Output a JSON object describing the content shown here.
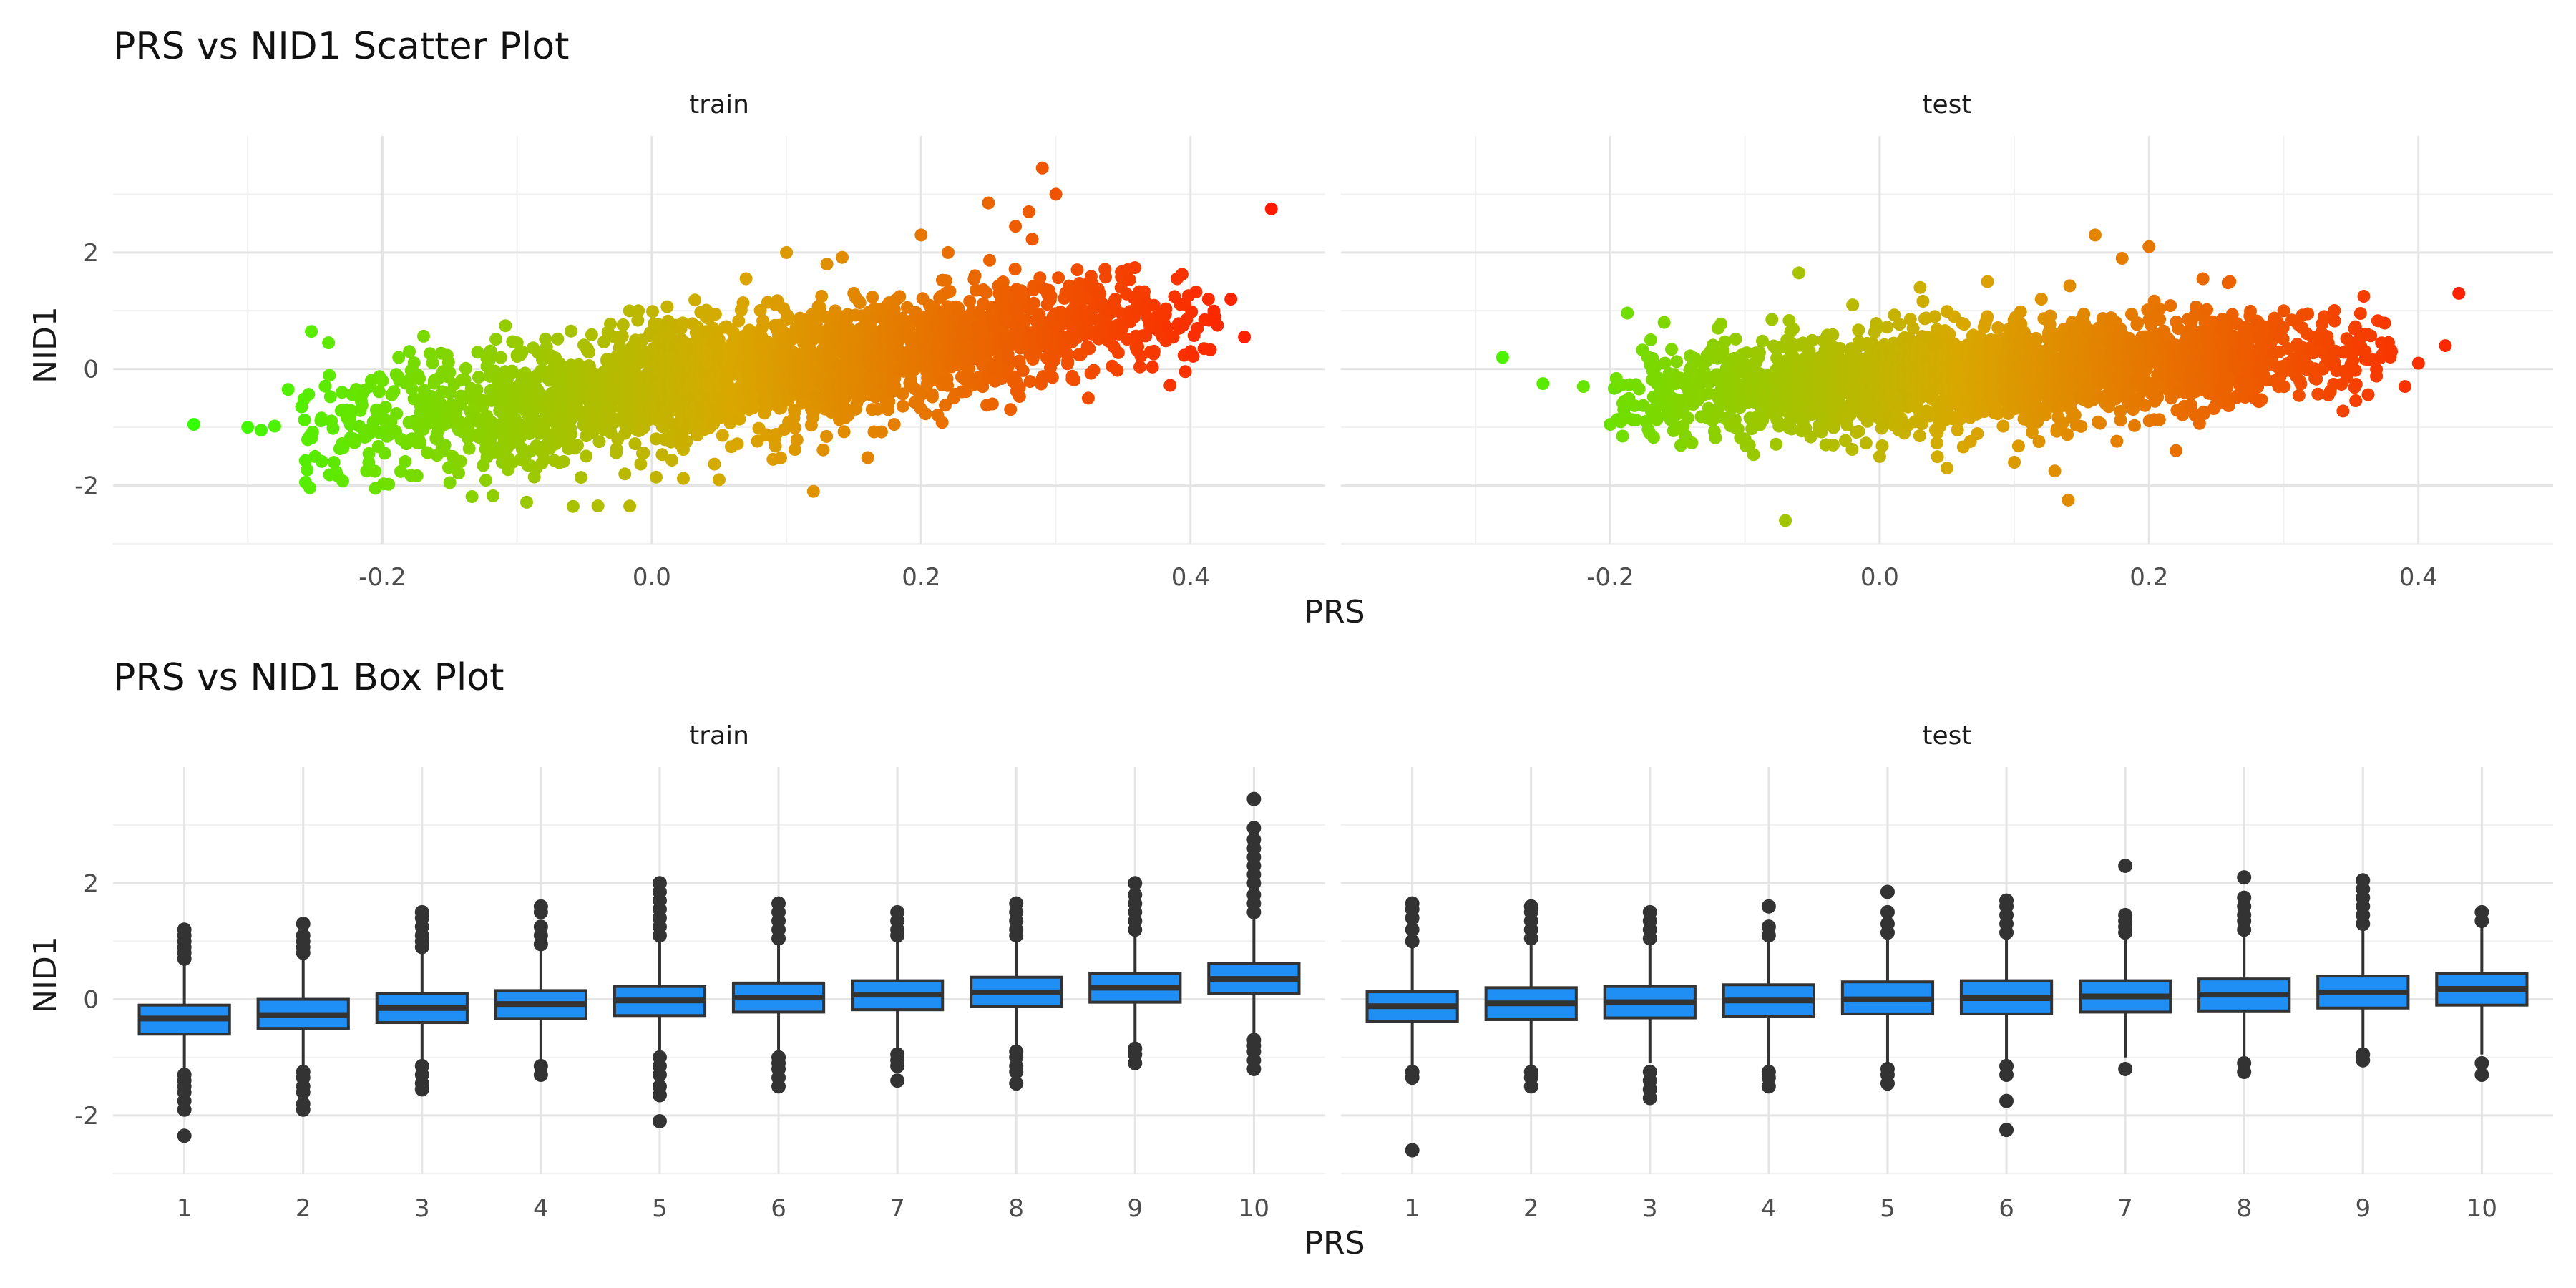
{
  "figure": {
    "scatter_title": "PRS vs NID1 Scatter Plot",
    "box_title": "PRS vs NID1 Box Plot"
  },
  "chart_data": [
    {
      "type": "scatter",
      "title": "PRS vs NID1 Scatter Plot",
      "xlabel": "PRS",
      "ylabel": "NID1",
      "grid": true,
      "legend": "none",
      "color_scale": {
        "low": "#33ff00",
        "mid": "#d9a800",
        "high": "#ff1a00",
        "mapped_to": "PRS"
      },
      "panels": [
        {
          "name": "train",
          "xlim": [
            -0.4,
            0.5
          ],
          "ylim": [
            -3,
            4
          ],
          "x_ticks": [
            -0.2,
            0.0,
            0.2,
            0.4
          ],
          "x_tick_labels": [
            "-0.2",
            "0.0",
            "0.2",
            "0.4"
          ],
          "y_ticks": [
            -2,
            0,
            2
          ],
          "y_tick_labels": [
            "-2",
            "0",
            "2"
          ],
          "points_x": [
            -0.34,
            -0.3,
            -0.29,
            -0.28,
            -0.27,
            -0.26,
            -0.25,
            -0.24,
            -0.23,
            -0.21,
            -0.2,
            -0.18,
            -0.15,
            -0.12,
            -0.1,
            -0.08,
            -0.06,
            -0.04,
            -0.02,
            -0.01,
            0.02,
            0.04,
            0.05,
            0.07,
            0.09,
            0.1,
            0.12,
            0.13,
            0.15,
            0.18,
            0.2,
            0.22,
            0.24,
            0.25,
            0.27,
            0.28,
            0.29,
            0.3,
            0.32,
            0.34,
            0.36,
            0.37,
            0.38,
            0.39,
            0.4,
            0.41,
            0.42,
            0.43,
            0.44,
            0.46
          ],
          "points_y": [
            -0.95,
            -1.0,
            -1.05,
            -0.98,
            -0.35,
            -0.65,
            -1.5,
            0.45,
            -0.4,
            -1.45,
            -0.2,
            0.3,
            -1.95,
            -0.9,
            0.45,
            -1.55,
            0.65,
            -2.35,
            -1.8,
            1.0,
            -1.2,
            0.9,
            -1.9,
            1.55,
            -1.55,
            2.0,
            -2.1,
            1.8,
            1.3,
            -0.95,
            2.3,
            2.0,
            1.6,
            2.85,
            2.45,
            2.7,
            3.45,
            3.0,
            1.2,
            0.95,
            1.25,
            0.7,
            0.8,
            1.55,
            0.3,
            0.35,
            0.75,
            1.2,
            0.55,
            2.75
          ],
          "cloud_center": {
            "x_range": [
              -0.22,
              0.38
            ],
            "slope": 3.2,
            "intercept": -0.15,
            "sd": 0.55
          }
        },
        {
          "name": "test",
          "xlim": [
            -0.4,
            0.5
          ],
          "ylim": [
            -3,
            4
          ],
          "x_ticks": [
            -0.2,
            0.0,
            0.2,
            0.4
          ],
          "x_tick_labels": [
            "-0.2",
            "0.0",
            "0.2",
            "0.4"
          ],
          "y_ticks": [
            -2,
            0,
            2
          ],
          "y_tick_labels": [
            "-2",
            "0",
            "2"
          ],
          "points_x": [
            -0.28,
            -0.25,
            -0.22,
            -0.2,
            -0.19,
            -0.17,
            -0.16,
            -0.14,
            -0.12,
            -0.1,
            -0.08,
            -0.07,
            -0.06,
            -0.04,
            -0.02,
            0.0,
            0.03,
            0.05,
            0.08,
            0.1,
            0.12,
            0.13,
            0.14,
            0.16,
            0.18,
            0.2,
            0.22,
            0.24,
            0.26,
            0.3,
            0.33,
            0.36,
            0.38,
            0.39,
            0.4,
            0.42,
            0.43
          ],
          "points_y": [
            0.2,
            -0.25,
            -0.3,
            -0.95,
            -0.7,
            0.5,
            0.8,
            -0.55,
            0.7,
            -1.2,
            0.85,
            -2.6,
            1.65,
            -1.3,
            1.1,
            -1.5,
            1.4,
            -1.7,
            1.5,
            -1.6,
            1.2,
            -1.75,
            -2.25,
            2.3,
            1.9,
            2.1,
            -1.4,
            1.55,
            1.5,
            1.0,
            0.9,
            0.6,
            0.3,
            -0.3,
            0.1,
            0.4,
            1.3
          ],
          "cloud_center": {
            "x_range": [
              -0.16,
              0.34
            ],
            "slope": 1.4,
            "intercept": -0.15,
            "sd": 0.45
          }
        }
      ]
    },
    {
      "type": "box",
      "title": "PRS vs NID1 Box Plot",
      "xlabel": "PRS",
      "ylabel": "NID1",
      "grid": true,
      "legend": "none",
      "box_fill": "#1f8ff5",
      "box_line": "#333333",
      "panels": [
        {
          "name": "train",
          "ylim": [
            -3,
            4
          ],
          "y_ticks": [
            -2,
            0,
            2
          ],
          "y_tick_labels": [
            "-2",
            "0",
            "2"
          ],
          "categories": [
            "1",
            "2",
            "3",
            "4",
            "5",
            "6",
            "7",
            "8",
            "9",
            "10"
          ],
          "boxes": [
            {
              "q1": -0.6,
              "median": -0.33,
              "q3": -0.1,
              "lower": -1.25,
              "upper": 0.6,
              "outliers": [
                0.7,
                0.8,
                0.9,
                1.0,
                1.1,
                1.2,
                -1.3,
                -1.4,
                -1.5,
                -1.6,
                -1.75,
                -1.9,
                -2.35
              ]
            },
            {
              "q1": -0.5,
              "median": -0.27,
              "q3": 0.0,
              "lower": -1.2,
              "upper": 0.75,
              "outliers": [
                0.8,
                0.9,
                1.0,
                1.1,
                1.3,
                -1.25,
                -1.35,
                -1.5,
                -1.6,
                -1.8,
                -1.9
              ]
            },
            {
              "q1": -0.4,
              "median": -0.15,
              "q3": 0.1,
              "lower": -1.1,
              "upper": 0.85,
              "outliers": [
                0.9,
                1.0,
                1.1,
                1.25,
                1.4,
                1.5,
                -1.15,
                -1.3,
                -1.45,
                -1.55
              ]
            },
            {
              "q1": -0.33,
              "median": -0.08,
              "q3": 0.15,
              "lower": -1.1,
              "upper": 0.9,
              "outliers": [
                0.95,
                1.1,
                1.25,
                1.5,
                1.6,
                -1.15,
                -1.3
              ]
            },
            {
              "q1": -0.28,
              "median": -0.02,
              "q3": 0.22,
              "lower": -0.95,
              "upper": 1.0,
              "outliers": [
                1.1,
                1.25,
                1.4,
                1.55,
                1.7,
                1.85,
                2.0,
                -1.0,
                -1.15,
                -1.3,
                -1.5,
                -1.65,
                -2.1
              ]
            },
            {
              "q1": -0.22,
              "median": 0.03,
              "q3": 0.28,
              "lower": -0.95,
              "upper": 0.95,
              "outliers": [
                1.05,
                1.2,
                1.35,
                1.5,
                1.65,
                -1.0,
                -1.1,
                -1.2,
                -1.35,
                -1.5
              ]
            },
            {
              "q1": -0.18,
              "median": 0.08,
              "q3": 0.32,
              "lower": -0.9,
              "upper": 1.0,
              "outliers": [
                1.1,
                1.2,
                1.35,
                1.5,
                -0.95,
                -1.05,
                -1.15,
                -1.4
              ]
            },
            {
              "q1": -0.12,
              "median": 0.12,
              "q3": 0.38,
              "lower": -0.85,
              "upper": 1.05,
              "outliers": [
                1.1,
                1.2,
                1.35,
                1.5,
                1.65,
                -0.9,
                -1.0,
                -1.15,
                -1.25,
                -1.45
              ]
            },
            {
              "q1": -0.05,
              "median": 0.2,
              "q3": 0.45,
              "lower": -0.75,
              "upper": 1.15,
              "outliers": [
                1.2,
                1.35,
                1.5,
                1.65,
                1.8,
                2.0,
                -0.85,
                -0.95,
                -1.1
              ]
            },
            {
              "q1": 0.1,
              "median": 0.35,
              "q3": 0.62,
              "lower": -0.6,
              "upper": 1.4,
              "outliers": [
                1.5,
                1.65,
                1.8,
                2.0,
                2.15,
                2.3,
                2.45,
                2.6,
                2.75,
                2.95,
                3.45,
                -0.7,
                -0.8,
                -0.9,
                -1.05,
                -1.2
              ]
            }
          ]
        },
        {
          "name": "test",
          "ylim": [
            -3,
            4
          ],
          "y_ticks": [
            -2,
            0,
            2
          ],
          "y_tick_labels": [
            "-2",
            "0",
            "2"
          ],
          "categories": [
            "1",
            "2",
            "3",
            "4",
            "5",
            "6",
            "7",
            "8",
            "9",
            "10"
          ],
          "boxes": [
            {
              "q1": -0.38,
              "median": -0.12,
              "q3": 0.13,
              "lower": -1.2,
              "upper": 0.9,
              "outliers": [
                1.0,
                1.2,
                1.4,
                1.55,
                1.65,
                -1.25,
                -1.35,
                -2.6
              ]
            },
            {
              "q1": -0.35,
              "median": -0.07,
              "q3": 0.2,
              "lower": -1.15,
              "upper": 0.95,
              "outliers": [
                1.05,
                1.2,
                1.35,
                1.5,
                1.6,
                -1.25,
                -1.35,
                -1.5
              ]
            },
            {
              "q1": -0.32,
              "median": -0.05,
              "q3": 0.22,
              "lower": -1.1,
              "upper": 0.95,
              "outliers": [
                1.05,
                1.2,
                1.35,
                1.5,
                -1.25,
                -1.4,
                -1.55,
                -1.7
              ]
            },
            {
              "q1": -0.3,
              "median": -0.02,
              "q3": 0.25,
              "lower": -1.15,
              "upper": 1.0,
              "outliers": [
                1.1,
                1.25,
                1.6,
                -1.25,
                -1.35,
                -1.5
              ]
            },
            {
              "q1": -0.25,
              "median": 0.0,
              "q3": 0.3,
              "lower": -1.1,
              "upper": 1.05,
              "outliers": [
                1.15,
                1.3,
                1.5,
                1.85,
                -1.2,
                -1.3,
                -1.45
              ]
            },
            {
              "q1": -0.25,
              "median": 0.02,
              "q3": 0.32,
              "lower": -1.05,
              "upper": 1.05,
              "outliers": [
                1.15,
                1.3,
                1.45,
                1.6,
                1.7,
                -1.15,
                -1.3,
                -1.75,
                -2.25
              ]
            },
            {
              "q1": -0.22,
              "median": 0.05,
              "q3": 0.32,
              "lower": -1.0,
              "upper": 1.05,
              "outliers": [
                1.15,
                1.25,
                1.35,
                1.45,
                2.3,
                -1.2
              ]
            },
            {
              "q1": -0.2,
              "median": 0.08,
              "q3": 0.35,
              "lower": -1.0,
              "upper": 1.1,
              "outliers": [
                1.2,
                1.35,
                1.45,
                1.6,
                1.75,
                2.1,
                -1.1,
                -1.25
              ]
            },
            {
              "q1": -0.15,
              "median": 0.12,
              "q3": 0.4,
              "lower": -0.9,
              "upper": 1.2,
              "outliers": [
                1.3,
                1.45,
                1.6,
                1.75,
                1.9,
                2.05,
                -0.95,
                -1.05
              ]
            },
            {
              "q1": -0.1,
              "median": 0.18,
              "q3": 0.45,
              "lower": -0.95,
              "upper": 1.25,
              "outliers": [
                1.35,
                1.5,
                -1.1,
                -1.3
              ]
            }
          ]
        }
      ]
    }
  ]
}
